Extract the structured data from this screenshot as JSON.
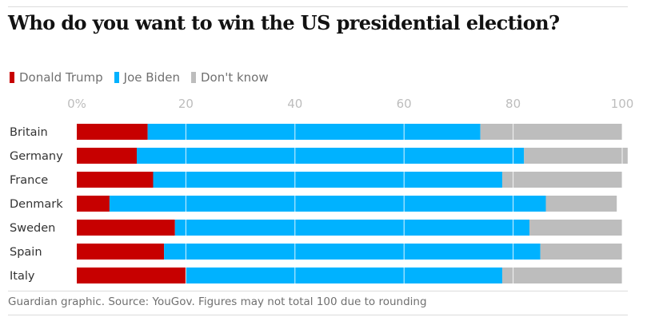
{
  "title": "Who do you want to win the US presidential election?",
  "source": "Guardian graphic. Source: YouGov. Figures may not total 100 due to rounding",
  "colors": {
    "trump": "#c70000",
    "biden": "#00b2ff",
    "dontknow": "#bdbdbd",
    "grid": "#dcdcdc",
    "tick": "#bdbdbd",
    "label": "#333333"
  },
  "chart_data": {
    "type": "bar",
    "orientation": "horizontal",
    "stacked": true,
    "xlim": [
      0,
      100
    ],
    "xticks": [
      "0%",
      "20",
      "40",
      "60",
      "80",
      "100"
    ],
    "xtick_values": [
      0,
      20,
      40,
      60,
      80,
      100
    ],
    "legend_position": "top-left",
    "grid": true,
    "categories": [
      "Britain",
      "Germany",
      "France",
      "Denmark",
      "Sweden",
      "Spain",
      "Italy"
    ],
    "series": [
      {
        "name": "Donald Trump",
        "color": "#c70000",
        "values": [
          13,
          11,
          14,
          6,
          18,
          16,
          20
        ]
      },
      {
        "name": "Joe Biden",
        "color": "#00b2ff",
        "values": [
          61,
          71,
          64,
          80,
          65,
          69,
          58
        ]
      },
      {
        "name": "Don't know",
        "color": "#bdbdbd",
        "values": [
          26,
          19,
          22,
          13,
          17,
          15,
          22
        ]
      }
    ]
  }
}
